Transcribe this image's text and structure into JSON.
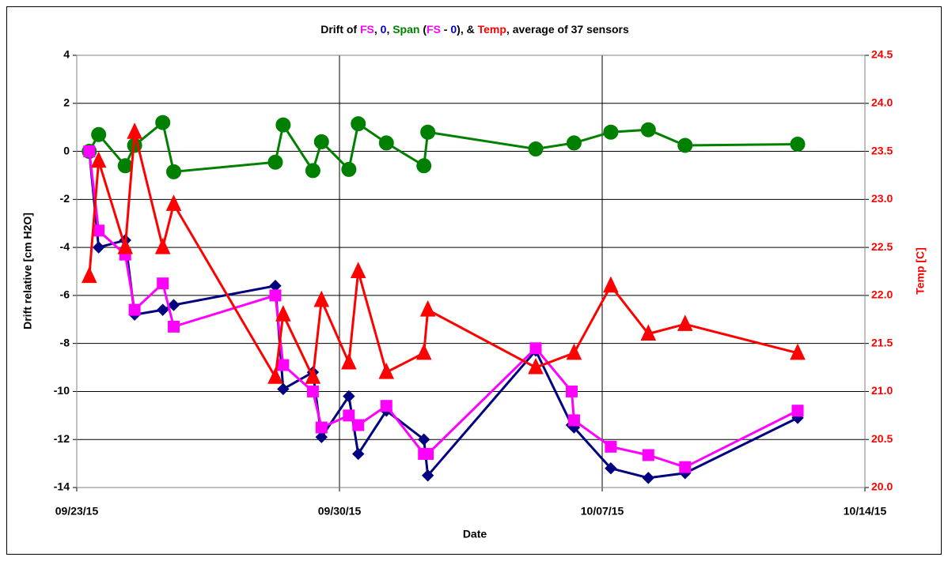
{
  "chart_data": {
    "type": "line",
    "title_parts": [
      {
        "text": "Drift of ",
        "color": "#000000"
      },
      {
        "text": "FS",
        "color": "#ff00ff"
      },
      {
        "text": ", ",
        "color": "#000000"
      },
      {
        "text": "0",
        "color": "#0000cc"
      },
      {
        "text": ", ",
        "color": "#000000"
      },
      {
        "text": "Span",
        "color": "#008000"
      },
      {
        "text": " (",
        "color": "#000000"
      },
      {
        "text": "FS",
        "color": "#ff00ff"
      },
      {
        "text": " - ",
        "color": "#000000"
      },
      {
        "text": "0",
        "color": "#0000cc"
      },
      {
        "text": "), & ",
        "color": "#000000"
      },
      {
        "text": "Temp",
        "color": "#ff0000"
      },
      {
        "text": ", average of 37 sensors",
        "color": "#000000"
      }
    ],
    "x_label": "Date",
    "y_label": "Drift relative [cm H2O]",
    "y2_label": "Temp [C]",
    "y2_label_color": "#ff0000",
    "xlim": [
      "2015-09-23T00:00",
      "2015-10-14T00:00"
    ],
    "xticks": [
      {
        "value": "2015-09-23T00:00",
        "label": "09/23/15"
      },
      {
        "value": "2015-09-30T00:00",
        "label": "09/30/15"
      },
      {
        "value": "2015-10-07T00:00",
        "label": "10/07/15"
      },
      {
        "value": "2015-10-14T00:00",
        "label": "10/14/15"
      }
    ],
    "ylim": [
      -14,
      4
    ],
    "yticks": [
      -14,
      -12,
      -10,
      -8,
      -6,
      -4,
      -2,
      0,
      2,
      4
    ],
    "y2lim": [
      20,
      24.5
    ],
    "y2ticks": [
      {
        "value": 20,
        "label": "20.0"
      },
      20.5,
      {
        "value": 21,
        "label": "21.0"
      },
      21.5,
      {
        "value": 22,
        "label": "22.0"
      },
      22.5,
      {
        "value": 23,
        "label": "23.0"
      },
      23.5,
      {
        "value": 24,
        "label": "24.0"
      },
      24.5
    ],
    "y2tick_color": "#ff0000",
    "grid": true,
    "series": [
      {
        "color": "#008000",
        "marker": "circle",
        "x": [
          "2015-09-23T08:00",
          "2015-09-23T14:00",
          "2015-09-24T07:00",
          "2015-09-24T13:00",
          "2015-09-25T07:00",
          "2015-09-25T14:00",
          "2015-09-28T07:00",
          "2015-09-28T12:00",
          "2015-09-29T07:00",
          "2015-09-29T12:30",
          "2015-09-30T06:00",
          "2015-09-30T12:00",
          "2015-10-01T06:00",
          "2015-10-02T06:00",
          "2015-10-02T08:30",
          "2015-10-05T05:30",
          "2015-10-06T06:00",
          "2015-10-07T05:30",
          "2015-10-08T05:30",
          "2015-10-09T05:00",
          "2015-10-12T05:00"
        ],
        "values": [
          0,
          0.7,
          -0.6,
          0.25,
          1.2,
          -0.85,
          -0.45,
          1.1,
          -0.8,
          0.4,
          -0.75,
          1.15,
          0.35,
          -0.6,
          0.8,
          0.1,
          0.35,
          0.8,
          0.9,
          0.25,
          0.3
        ]
      },
      {
        "color": "#000080",
        "marker": "diamond",
        "x": [
          "2015-09-23T08:00",
          "2015-09-23T14:00",
          "2015-09-24T07:00",
          "2015-09-24T13:00",
          "2015-09-25T07:00",
          "2015-09-25T14:00",
          "2015-09-28T07:00",
          "2015-09-28T12:00",
          "2015-09-29T07:00",
          "2015-09-29T12:30",
          "2015-09-30T06:00",
          "2015-09-30T12:00",
          "2015-10-01T06:00",
          "2015-10-02T06:00",
          "2015-10-02T08:30",
          "2015-10-05T05:30",
          "2015-10-06T04:30",
          "2015-10-06T06:00",
          "2015-10-07T05:30",
          "2015-10-08T05:30",
          "2015-10-09T05:00",
          "2015-10-12T05:00"
        ],
        "values": [
          0,
          -4,
          -3.7,
          -6.8,
          -6.6,
          -6.4,
          -5.6,
          -9.9,
          -9.2,
          -11.9,
          -10.2,
          -12.6,
          -10.8,
          -12,
          -13.5,
          -8.3,
          -11.4,
          -11.5,
          -13.2,
          -13.6,
          -13.4,
          -11.1
        ]
      },
      {
        "color": "#ff00ff",
        "marker": "square",
        "x": [
          "2015-09-23T08:00",
          "2015-09-23T14:00",
          "2015-09-24T07:00",
          "2015-09-24T13:00",
          "2015-09-25T07:00",
          "2015-09-25T14:00",
          "2015-09-28T07:00",
          "2015-09-28T12:00",
          "2015-09-29T07:00",
          "2015-09-29T12:30",
          "2015-09-30T06:00",
          "2015-09-30T12:00",
          "2015-10-01T06:00",
          "2015-10-02T06:00",
          "2015-10-02T08:30",
          "2015-10-05T05:30",
          "2015-10-06T04:30",
          "2015-10-06T06:00",
          "2015-10-07T05:30",
          "2015-10-08T05:30",
          "2015-10-09T05:00",
          "2015-10-12T05:00"
        ],
        "values": [
          0,
          -3.3,
          -4.3,
          -6.6,
          -5.5,
          -7.3,
          -6,
          -8.9,
          -10,
          -11.5,
          -11,
          -11.4,
          -10.6,
          -12.6,
          -12.6,
          -8.2,
          -10,
          -11.2,
          -12.3,
          -12.65,
          -13.15,
          -10.8
        ]
      },
      {
        "color": "#ff0000",
        "marker": "triangle",
        "axis": "y2",
        "x": [
          "2015-09-23T08:00",
          "2015-09-23T14:00",
          "2015-09-24T07:00",
          "2015-09-24T13:00",
          "2015-09-25T07:00",
          "2015-09-25T14:00",
          "2015-09-28T07:00",
          "2015-09-28T12:00",
          "2015-09-29T07:00",
          "2015-09-29T12:30",
          "2015-09-30T06:00",
          "2015-09-30T12:00",
          "2015-10-01T06:00",
          "2015-10-02T06:00",
          "2015-10-02T08:30",
          "2015-10-05T05:30",
          "2015-10-06T06:00",
          "2015-10-07T05:30",
          "2015-10-08T05:30",
          "2015-10-09T05:00",
          "2015-10-12T05:00"
        ],
        "values": [
          22.2,
          23.4,
          22.5,
          23.7,
          22.5,
          22.95,
          21.15,
          21.8,
          21.15,
          21.95,
          21.3,
          22.25,
          21.2,
          21.4,
          21.85,
          21.25,
          21.4,
          22.1,
          21.6,
          21.7,
          21.4
        ]
      }
    ]
  }
}
